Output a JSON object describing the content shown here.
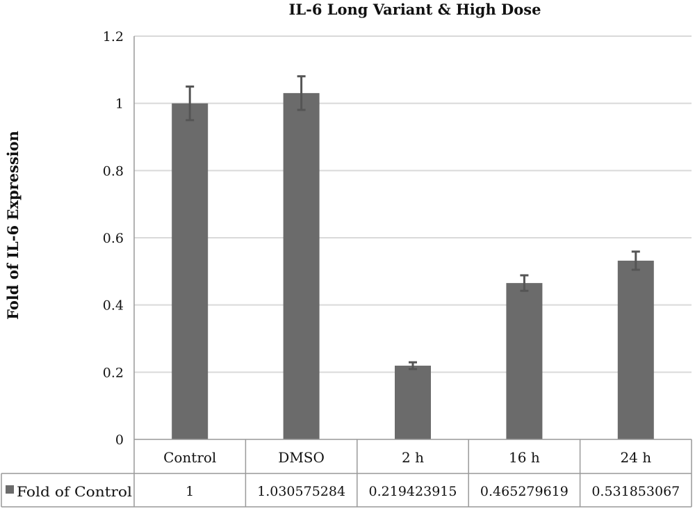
{
  "chart_data": {
    "type": "bar",
    "title": "IL-6 Long Variant & High Dose",
    "ylabel": "Fold of IL-6  Expression",
    "xlabel": "",
    "categories": [
      "Control",
      "DMSO",
      "2 h",
      "16 h",
      "24 h"
    ],
    "series": [
      {
        "name": "Fold of Control",
        "values": [
          1,
          1.030575284,
          0.219423915,
          0.465279619,
          0.531853067
        ],
        "value_labels": [
          "1",
          "1.030575284",
          "0.219423915",
          "0.465279619",
          "0.531853067"
        ],
        "error": [
          0.05,
          0.05,
          0.01,
          0.023,
          0.027
        ],
        "color": "#6b6b6b"
      }
    ],
    "ylim": [
      0,
      1.2
    ],
    "yticks": [
      0,
      0.2,
      0.4,
      0.6,
      0.8,
      1,
      1.2
    ],
    "ytick_labels": [
      "0",
      "0.2",
      "0.4",
      "0.6",
      "0.8",
      "1",
      "1.2"
    ],
    "grid": true,
    "data_table": true,
    "colors": {
      "bar": "#6b6b6b",
      "error_bar": "#555555",
      "grid": "#d9d9d9",
      "table_border": "#999999"
    }
  }
}
